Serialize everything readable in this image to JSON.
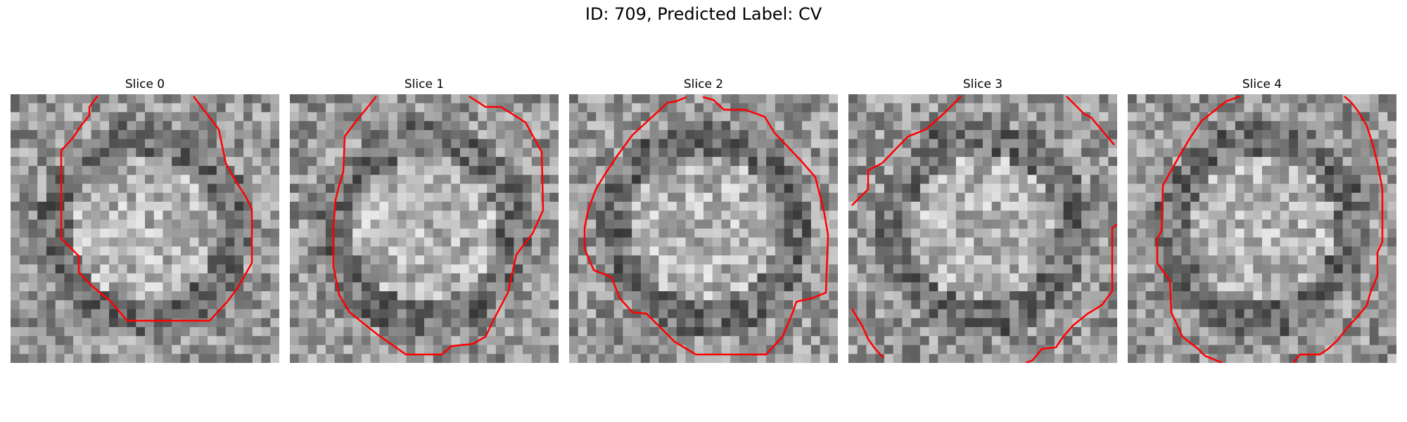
{
  "figure": {
    "title": "ID: 709, Predicted Label: CV"
  },
  "slices": [
    {
      "title": "Slice 0",
      "contour_color": "#ff0000"
    },
    {
      "title": "Slice 1",
      "contour_color": "#ff0000"
    },
    {
      "title": "Slice 2",
      "contour_color": "#ff0000"
    },
    {
      "title": "Slice 3",
      "contour_color": "#ff0000"
    },
    {
      "title": "Slice 4",
      "contour_color": "#ff0000"
    }
  ]
}
